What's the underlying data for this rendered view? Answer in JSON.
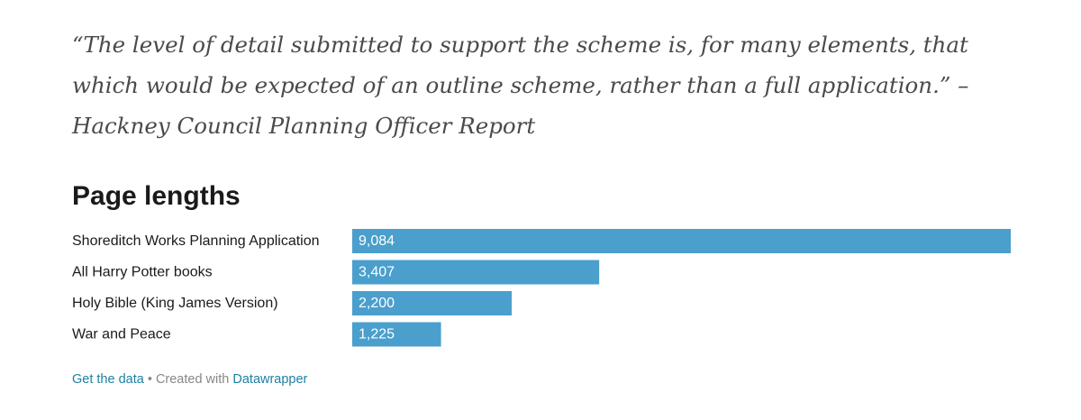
{
  "quote": {
    "text": "“The level of detail submitted to support the scheme is, for many elements, that which would be expected of an outline scheme, rather than a full application.” – Hackney Council Planning Officer Report"
  },
  "chart_data": {
    "type": "bar",
    "orientation": "horizontal",
    "title": "Page lengths",
    "categories": [
      "Shoreditch Works Planning Application",
      "All Harry Potter books",
      "Holy Bible (King James Version)",
      "War and Peace"
    ],
    "values": [
      9084,
      3407,
      2200,
      1225
    ],
    "value_labels": [
      "9,084",
      "3,407",
      "2,200",
      "1,225"
    ],
    "bar_color": "#4a9fcc",
    "xlabel": "",
    "ylabel": "",
    "xlim": [
      0,
      9084
    ],
    "grid": false,
    "legend": "none"
  },
  "footer": {
    "get_data": "Get the data",
    "separator": " • Created with ",
    "tool": "Datawrapper"
  }
}
